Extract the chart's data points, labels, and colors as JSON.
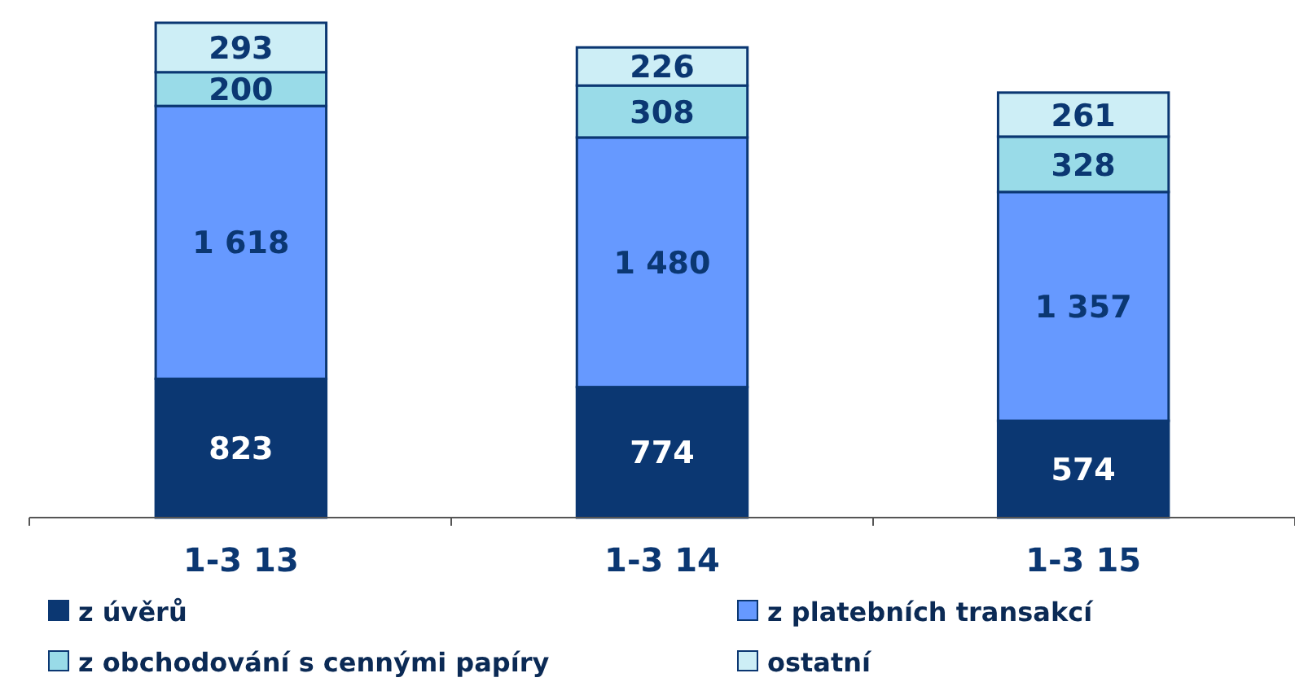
{
  "chart_data": {
    "type": "bar",
    "stacked": true,
    "categories": [
      "1-3 13",
      "1-3 14",
      "1-3 15"
    ],
    "legend": "bottom",
    "series": [
      {
        "name": "z úvěrů",
        "color": "#0b3772",
        "values": [
          823,
          774,
          574
        ],
        "value_labels": [
          "823",
          "774",
          "574"
        ]
      },
      {
        "name": "z platebních transakcí",
        "color": "#6699ff",
        "values": [
          1618,
          1480,
          1357
        ],
        "value_labels": [
          "1 618",
          "1 480",
          "1 357"
        ]
      },
      {
        "name": "z obchodování s cennými papíry",
        "color": "#99dbe8",
        "values": [
          200,
          308,
          328
        ],
        "value_labels": [
          "200",
          "308",
          "328"
        ]
      },
      {
        "name": "ostatní",
        "color": "#cdeef6",
        "values": [
          293,
          226,
          261
        ],
        "value_labels": [
          "293",
          "226",
          "261"
        ]
      }
    ]
  }
}
